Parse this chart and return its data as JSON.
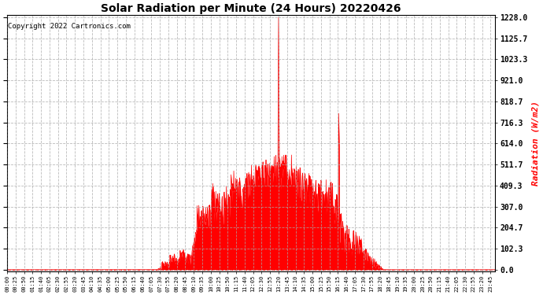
{
  "title": "Solar Radiation per Minute (24 Hours) 20220426",
  "ylabel": "Radiation (W/m2)",
  "ylabel_color": "#ff0000",
  "copyright_text": "Copyright 2022 Cartronics.com",
  "background_color": "#ffffff",
  "fill_color": "#ff0000",
  "line_color": "#ff0000",
  "grid_color": "#aaaaaa",
  "ymin": 0.0,
  "ymax": 1228.0,
  "yticks": [
    0.0,
    102.3,
    204.7,
    307.0,
    409.3,
    511.7,
    614.0,
    716.3,
    818.7,
    921.0,
    1023.3,
    1125.7,
    1228.0
  ],
  "total_minutes": 1440,
  "x_tick_interval": 25
}
